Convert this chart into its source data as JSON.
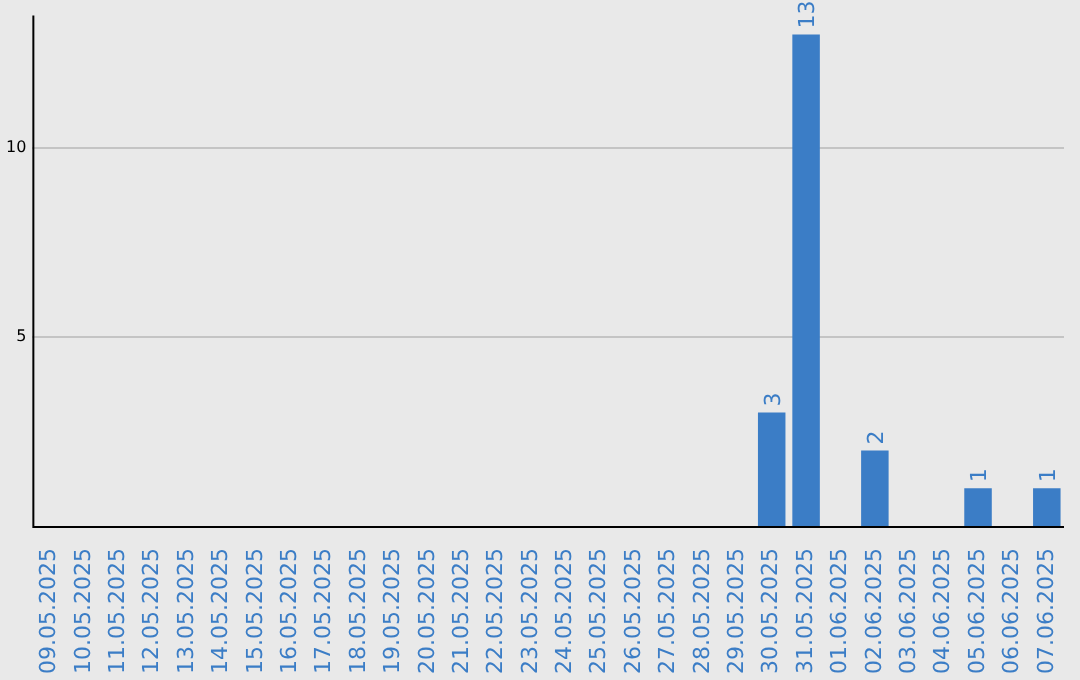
{
  "chart_data": {
    "type": "bar",
    "categories": [
      "09.05.2025",
      "10.05.2025",
      "11.05.2025",
      "12.05.2025",
      "13.05.2025",
      "14.05.2025",
      "15.05.2025",
      "16.05.2025",
      "17.05.2025",
      "18.05.2025",
      "19.05.2025",
      "20.05.2025",
      "21.05.2025",
      "22.05.2025",
      "23.05.2025",
      "24.05.2025",
      "25.05.2025",
      "26.05.2025",
      "27.05.2025",
      "28.05.2025",
      "29.05.2025",
      "30.05.2025",
      "31.05.2025",
      "01.06.2025",
      "02.06.2025",
      "03.06.2025",
      "04.06.2025",
      "05.06.2025",
      "06.06.2025",
      "07.06.2025"
    ],
    "values": [
      0,
      0,
      0,
      0,
      0,
      0,
      0,
      0,
      0,
      0,
      0,
      0,
      0,
      0,
      0,
      0,
      0,
      0,
      0,
      0,
      0,
      3,
      13,
      0,
      2,
      0,
      0,
      1,
      0,
      1
    ],
    "value_labels": [
      null,
      null,
      null,
      null,
      null,
      null,
      null,
      null,
      null,
      null,
      null,
      null,
      null,
      null,
      null,
      null,
      null,
      null,
      null,
      null,
      null,
      "3",
      "13",
      null,
      "2",
      null,
      null,
      "1",
      null,
      "1"
    ],
    "color": "#3b7dc6",
    "ylim": [
      0,
      13.5
    ],
    "yticks": [
      5,
      10
    ],
    "grid": "y"
  }
}
